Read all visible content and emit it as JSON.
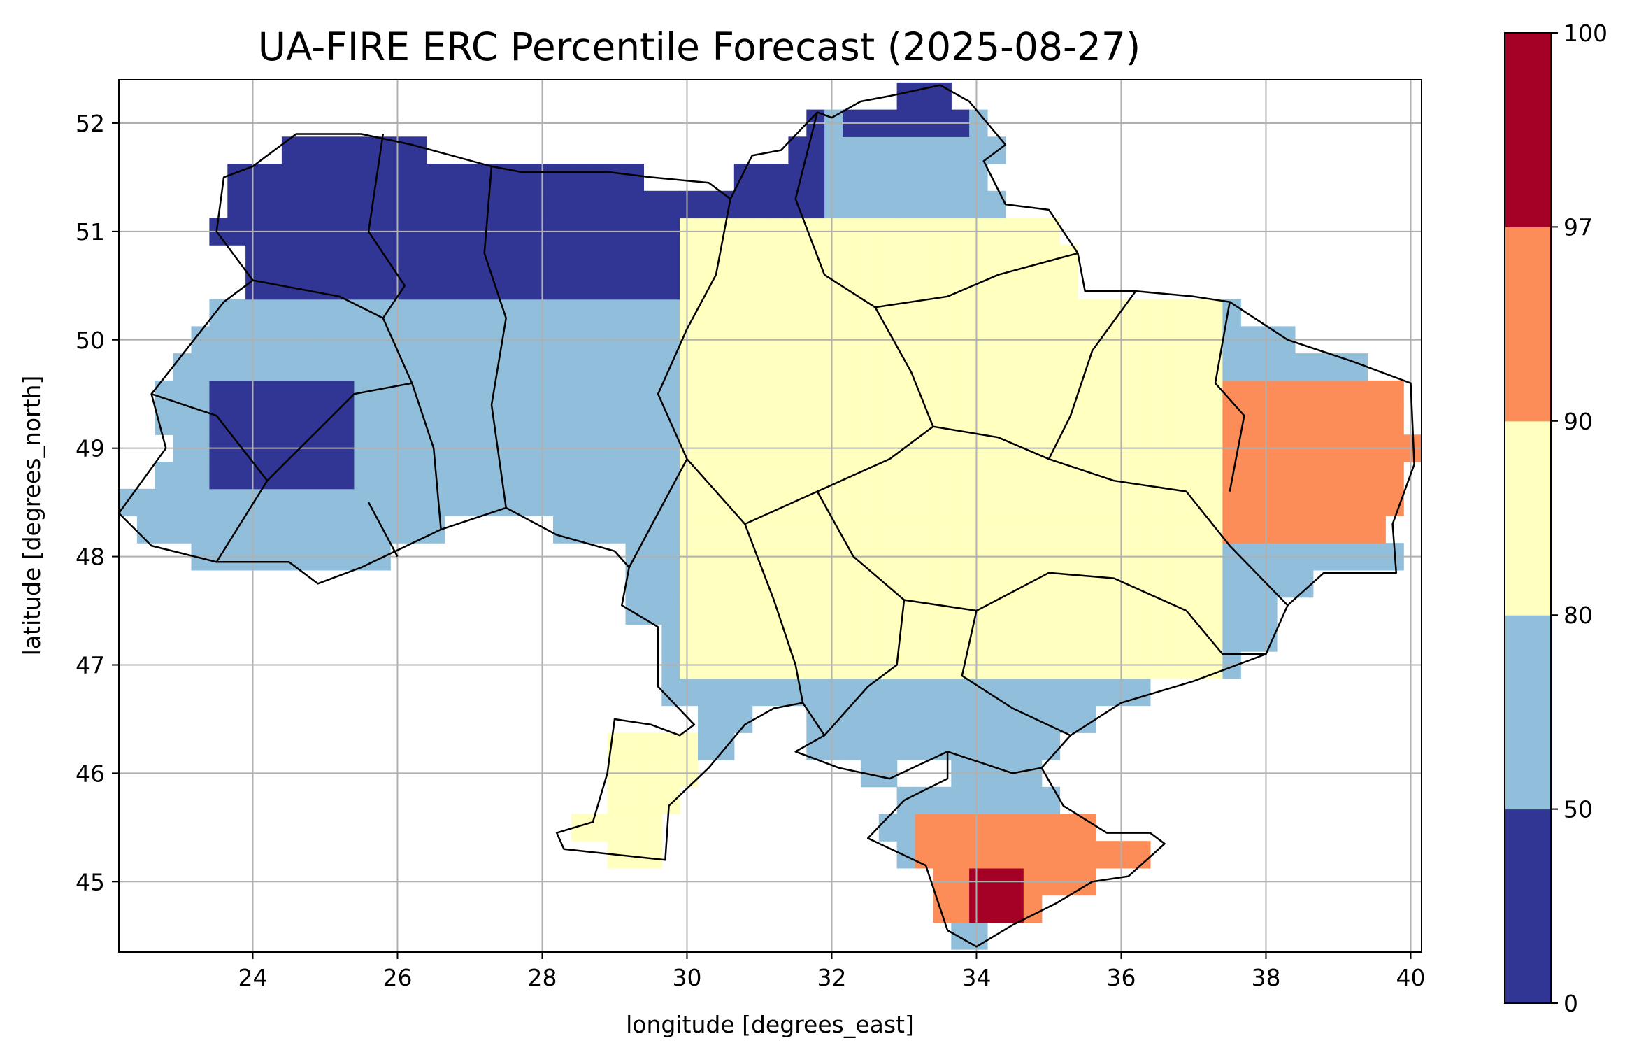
{
  "title": "UA-FIRE ERC Percentile Forecast (2025-08-27)",
  "chart_data": {
    "type": "heatmap",
    "title": "UA-FIRE ERC Percentile Forecast (2025-08-27)",
    "xlabel": "longitude [degrees_east]",
    "ylabel": "latitude [degrees_north]",
    "xlim": [
      22.15,
      40.15
    ],
    "ylim": [
      44.35,
      52.4
    ],
    "xticks": [
      24,
      26,
      28,
      30,
      32,
      34,
      36,
      38,
      40
    ],
    "yticks": [
      45,
      46,
      47,
      48,
      49,
      50,
      51,
      52
    ],
    "grid": true,
    "grid_resolution_deg": 0.25,
    "colorbar": {
      "bounds": [
        0,
        50,
        80,
        90,
        97,
        100
      ],
      "tick_labels": [
        "0",
        "50",
        "80",
        "90",
        "97",
        "100"
      ],
      "colors": [
        "#313695",
        "#91bfdb",
        "#ffffbf",
        "#fc8d59",
        "#a50026"
      ]
    },
    "approx_regions": [
      {
        "class": "0-50",
        "lon": [
          23.5,
          32.0
        ],
        "lat": [
          50.5,
          52.1
        ]
      },
      {
        "class": "0-50",
        "lon": [
          32.1,
          33.8
        ],
        "lat": [
          51.8,
          52.4
        ]
      },
      {
        "class": "0-50",
        "lon": [
          23.5,
          25.3
        ],
        "lat": [
          48.6,
          49.6
        ]
      },
      {
        "class": "80-90",
        "lon": [
          30.0,
          37.5
        ],
        "lat": [
          47.0,
          51.2
        ]
      },
      {
        "class": "80-90",
        "lon": [
          28.2,
          30.2
        ],
        "lat": [
          45.2,
          46.4
        ]
      },
      {
        "class": "90-97",
        "lon": [
          37.5,
          40.1
        ],
        "lat": [
          48.1,
          49.6
        ]
      },
      {
        "class": "90-97",
        "lon": [
          33.2,
          36.9
        ],
        "lat": [
          44.6,
          45.6
        ]
      },
      {
        "class": "97-100",
        "lon": [
          33.8,
          34.6
        ],
        "lat": [
          44.6,
          45.1
        ]
      }
    ]
  }
}
